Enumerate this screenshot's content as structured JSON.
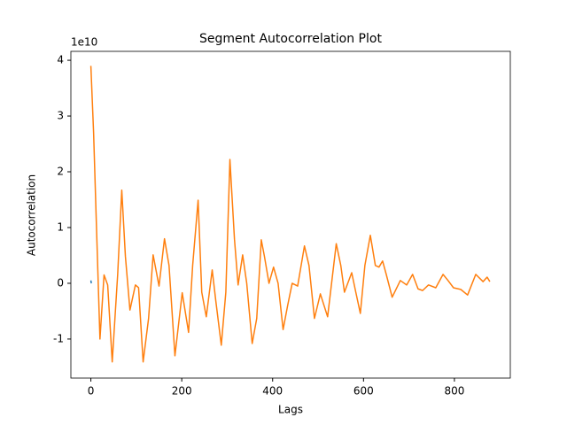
{
  "chart_data": {
    "type": "line",
    "title": "Segment Autocorrelation Plot",
    "xlabel": "Lags",
    "ylabel": "Autocorrelation",
    "y_scale_label": "1e10",
    "xlim": [
      -44,
      923
    ],
    "ylim": [
      -1.7,
      4.16
    ],
    "xticks": [
      0,
      200,
      400,
      600,
      800
    ],
    "yticks": [
      -1,
      0,
      1,
      2,
      3,
      4
    ],
    "series": [
      {
        "color": "#1f77b4",
        "x": [
          0,
          1
        ],
        "values": [
          0.05,
          0.0
        ]
      },
      {
        "color": "#ff7f0e",
        "x": [
          0,
          6,
          12,
          20,
          29,
          37,
          47,
          59,
          68,
          76,
          86,
          98,
          105,
          115,
          127,
          137,
          150,
          162,
          172,
          185,
          201,
          215,
          224,
          236,
          244,
          254,
          267,
          275,
          287,
          297,
          306,
          316,
          324,
          334,
          343,
          355,
          365,
          375,
          382,
          392,
          402,
          412,
          423,
          433,
          443,
          455,
          470,
          480,
          492,
          505,
          521,
          540,
          550,
          558,
          574,
          583,
          593,
          603,
          615,
          626,
          634,
          642,
          650,
          663,
          681,
          695,
          708,
          720,
          730,
          743,
          759,
          775,
          785,
          798,
          814,
          829,
          847,
          863,
          872,
          878
        ],
        "values": [
          3.9,
          2.7,
          1.1,
          -1.0,
          0.15,
          -0.03,
          -1.41,
          0.16,
          1.67,
          0.48,
          -0.48,
          -0.03,
          -0.08,
          -1.41,
          -0.63,
          0.51,
          -0.05,
          0.8,
          0.32,
          -1.3,
          -0.17,
          -0.88,
          0.32,
          1.49,
          -0.16,
          -0.6,
          0.24,
          -0.32,
          -1.11,
          -0.16,
          2.22,
          0.79,
          -0.03,
          0.51,
          0,
          -1.08,
          -0.63,
          0.78,
          0.48,
          0,
          0.29,
          0,
          -0.83,
          -0.4,
          0,
          -0.05,
          0.67,
          0.32,
          -0.63,
          -0.19,
          -0.6,
          0.71,
          0.32,
          -0.16,
          0.19,
          -0.16,
          -0.54,
          0.32,
          0.86,
          0.32,
          0.29,
          0.4,
          0.16,
          -0.25,
          0.05,
          -0.03,
          0.16,
          -0.1,
          -0.13,
          -0.03,
          -0.08,
          0.16,
          0.06,
          -0.08,
          -0.11,
          -0.21,
          0.16,
          0.03,
          0.11,
          0.03
        ]
      }
    ]
  }
}
